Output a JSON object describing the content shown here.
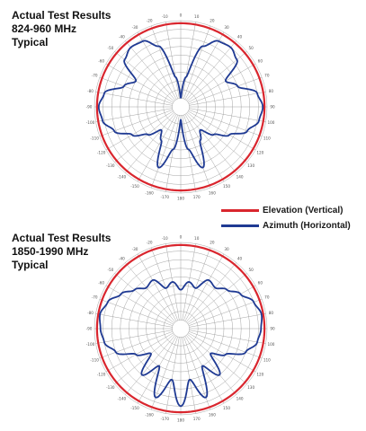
{
  "captions": [
    {
      "lines": [
        "Actual Test Results",
        "824-960 MHz",
        "Typical"
      ]
    },
    {
      "lines": [
        "Actual Test Results",
        "1850-1990 MHz",
        "Typical"
      ]
    }
  ],
  "legend": [
    {
      "label": "Elevation (Vertical)",
      "color": "#d9262e"
    },
    {
      "label": "Azimuth (Horizontal)",
      "color": "#1f3a93"
    }
  ],
  "chart_data": [
    {
      "type": "polar-line",
      "title": "",
      "angle_tick_labels": [
        "0",
        "10",
        "20",
        "30",
        "40",
        "50",
        "60",
        "70",
        "80",
        "90",
        "100",
        "110",
        "120",
        "130",
        "140",
        "150",
        "160",
        "170",
        "180",
        "-170",
        "-160",
        "-150",
        "-140",
        "-130",
        "-120",
        "-110",
        "-100",
        "-90",
        "-80",
        "-70",
        "-60",
        "-50",
        "-40",
        "-30",
        "-20",
        "-10"
      ],
      "series": [
        {
          "name": "Elevation (Vertical)",
          "theta_deg": [
            0,
            30,
            60,
            90,
            120,
            150,
            180,
            210,
            240,
            270,
            300,
            330
          ],
          "r_norm": [
            0.97,
            0.97,
            0.97,
            0.97,
            0.97,
            0.97,
            0.97,
            0.97,
            0.97,
            0.97,
            0.97,
            0.97
          ]
        },
        {
          "name": "Azimuth (Horizontal)",
          "theta_deg": [
            0,
            10,
            20,
            30,
            40,
            50,
            60,
            70,
            80,
            90,
            100,
            110,
            120,
            130,
            140,
            150,
            160,
            170,
            180,
            190,
            200,
            210,
            220,
            230,
            240,
            250,
            260,
            270,
            280,
            290,
            300,
            310,
            320,
            330,
            340,
            350
          ],
          "r_norm": [
            0.1,
            0.35,
            0.75,
            0.88,
            0.9,
            0.85,
            0.6,
            0.7,
            0.9,
            0.95,
            0.92,
            0.82,
            0.65,
            0.5,
            0.35,
            0.45,
            0.75,
            0.5,
            0.15,
            0.5,
            0.75,
            0.45,
            0.35,
            0.5,
            0.65,
            0.82,
            0.92,
            0.95,
            0.9,
            0.7,
            0.6,
            0.85,
            0.9,
            0.88,
            0.75,
            0.35
          ]
        }
      ]
    },
    {
      "type": "polar-line",
      "title": "",
      "angle_tick_labels": [
        "0",
        "10",
        "20",
        "30",
        "40",
        "50",
        "60",
        "70",
        "80",
        "90",
        "100",
        "110",
        "120",
        "130",
        "140",
        "150",
        "160",
        "170",
        "180",
        "-170",
        "-160",
        "-150",
        "-140",
        "-130",
        "-120",
        "-110",
        "-100",
        "-90",
        "-80",
        "-70",
        "-60",
        "-50",
        "-40",
        "-30",
        "-20",
        "-10"
      ],
      "series": [
        {
          "name": "Elevation (Vertical)",
          "theta_deg": [
            0,
            30,
            60,
            90,
            120,
            150,
            180,
            210,
            240,
            270,
            300,
            330
          ],
          "r_norm": [
            0.97,
            0.97,
            0.97,
            0.97,
            0.97,
            0.97,
            0.97,
            0.97,
            0.97,
            0.97,
            0.97,
            0.97
          ]
        },
        {
          "name": "Azimuth (Horizontal)",
          "theta_deg": [
            0,
            10,
            20,
            30,
            40,
            50,
            60,
            70,
            80,
            90,
            100,
            110,
            120,
            130,
            140,
            150,
            160,
            170,
            180,
            190,
            200,
            210,
            220,
            230,
            240,
            250,
            260,
            270,
            280,
            290,
            300,
            310,
            320,
            330,
            340,
            350
          ],
          "r_norm": [
            0.45,
            0.55,
            0.5,
            0.65,
            0.62,
            0.7,
            0.8,
            0.9,
            0.95,
            0.93,
            0.9,
            0.8,
            0.6,
            0.45,
            0.7,
            0.5,
            0.85,
            0.6,
            0.9,
            0.6,
            0.85,
            0.5,
            0.7,
            0.45,
            0.6,
            0.8,
            0.9,
            0.93,
            0.95,
            0.9,
            0.8,
            0.7,
            0.62,
            0.65,
            0.5,
            0.55
          ]
        }
      ]
    }
  ]
}
